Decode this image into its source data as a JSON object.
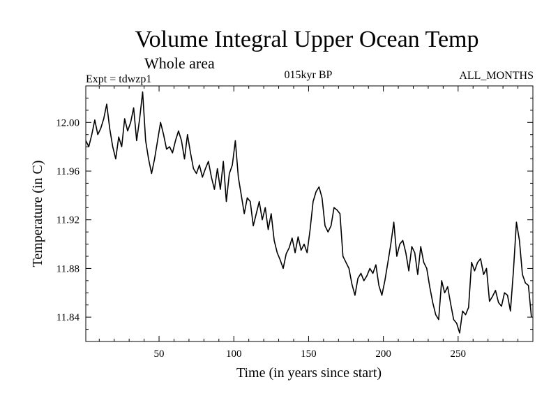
{
  "chart_data": {
    "type": "line",
    "title": "Volume Integral Upper Ocean Temp",
    "subtitle": "Whole area",
    "left_label": "Expt = tdwzp1",
    "center_label": "015kyr BP",
    "right_label": "ALL_MONTHS",
    "xlabel": "Time (in years since start)",
    "ylabel": "Temperature (in C)",
    "xlim": [
      1,
      300
    ],
    "ylim": [
      11.82,
      12.03
    ],
    "x_ticks": [
      50,
      100,
      150,
      200,
      250
    ],
    "y_ticks": [
      "11.84",
      "11.88",
      "11.92",
      "11.96",
      "12.00"
    ],
    "grid": false,
    "series": [
      {
        "name": "Temperature",
        "color": "#000000",
        "x": [
          1,
          3,
          5,
          7,
          9,
          11,
          13,
          15,
          17,
          19,
          21,
          23,
          25,
          27,
          29,
          31,
          33,
          35,
          37,
          39,
          41,
          43,
          45,
          47,
          49,
          51,
          53,
          55,
          57,
          59,
          61,
          63,
          65,
          67,
          69,
          71,
          73,
          75,
          77,
          79,
          81,
          83,
          85,
          87,
          89,
          91,
          93,
          95,
          97,
          99,
          101,
          103,
          105,
          107,
          109,
          111,
          113,
          115,
          117,
          119,
          121,
          123,
          125,
          127,
          129,
          131,
          133,
          135,
          137,
          139,
          141,
          143,
          145,
          147,
          149,
          151,
          153,
          155,
          157,
          159,
          161,
          163,
          165,
          167,
          169,
          171,
          173,
          175,
          177,
          179,
          181,
          183,
          185,
          187,
          189,
          191,
          193,
          195,
          197,
          199,
          201,
          203,
          205,
          207,
          209,
          211,
          213,
          215,
          217,
          219,
          221,
          223,
          225,
          227,
          229,
          231,
          233,
          235,
          237,
          239,
          241,
          243,
          245,
          247,
          249,
          251,
          253,
          255,
          257,
          259,
          261,
          263,
          265,
          267,
          269,
          271,
          273,
          275,
          277,
          279,
          281,
          283,
          285,
          287,
          289,
          291,
          293,
          295,
          297,
          299
        ],
        "values": [
          11.985,
          11.98,
          11.99,
          12.002,
          11.99,
          11.995,
          12.003,
          12.015,
          11.995,
          11.98,
          11.97,
          11.988,
          11.98,
          12.003,
          11.993,
          12.0,
          12.012,
          11.985,
          12.003,
          12.025,
          11.985,
          11.97,
          11.958,
          11.97,
          11.985,
          12.0,
          11.99,
          11.978,
          11.98,
          11.975,
          11.985,
          11.993,
          11.985,
          11.97,
          11.99,
          11.975,
          11.962,
          11.958,
          11.965,
          11.955,
          11.962,
          11.968,
          11.955,
          11.945,
          11.962,
          11.945,
          11.968,
          11.935,
          11.958,
          11.965,
          11.985,
          11.955,
          11.94,
          11.925,
          11.938,
          11.935,
          11.915,
          11.925,
          11.935,
          11.92,
          11.93,
          11.912,
          11.925,
          11.903,
          11.893,
          11.887,
          11.88,
          11.892,
          11.897,
          11.905,
          11.893,
          11.906,
          11.895,
          11.9,
          11.893,
          11.912,
          11.935,
          11.943,
          11.947,
          11.938,
          11.915,
          11.91,
          11.915,
          11.93,
          11.928,
          11.925,
          11.89,
          11.885,
          11.88,
          11.867,
          11.858,
          11.872,
          11.876,
          11.87,
          11.874,
          11.88,
          11.876,
          11.883,
          11.866,
          11.858,
          11.87,
          11.885,
          11.9,
          11.918,
          11.89,
          11.9,
          11.903,
          11.893,
          11.878,
          11.898,
          11.893,
          11.875,
          11.898,
          11.885,
          11.88,
          11.865,
          11.852,
          11.842,
          11.838,
          11.87,
          11.86,
          11.865,
          11.851,
          11.838,
          11.835,
          11.827,
          11.845,
          11.842,
          11.848,
          11.885,
          11.878,
          11.885,
          11.888,
          11.875,
          11.88,
          11.853,
          11.857,
          11.862,
          11.852,
          11.849,
          11.86,
          11.858,
          11.845,
          11.878,
          11.918,
          11.903,
          11.875,
          11.868,
          11.866,
          11.84
        ]
      }
    ]
  }
}
